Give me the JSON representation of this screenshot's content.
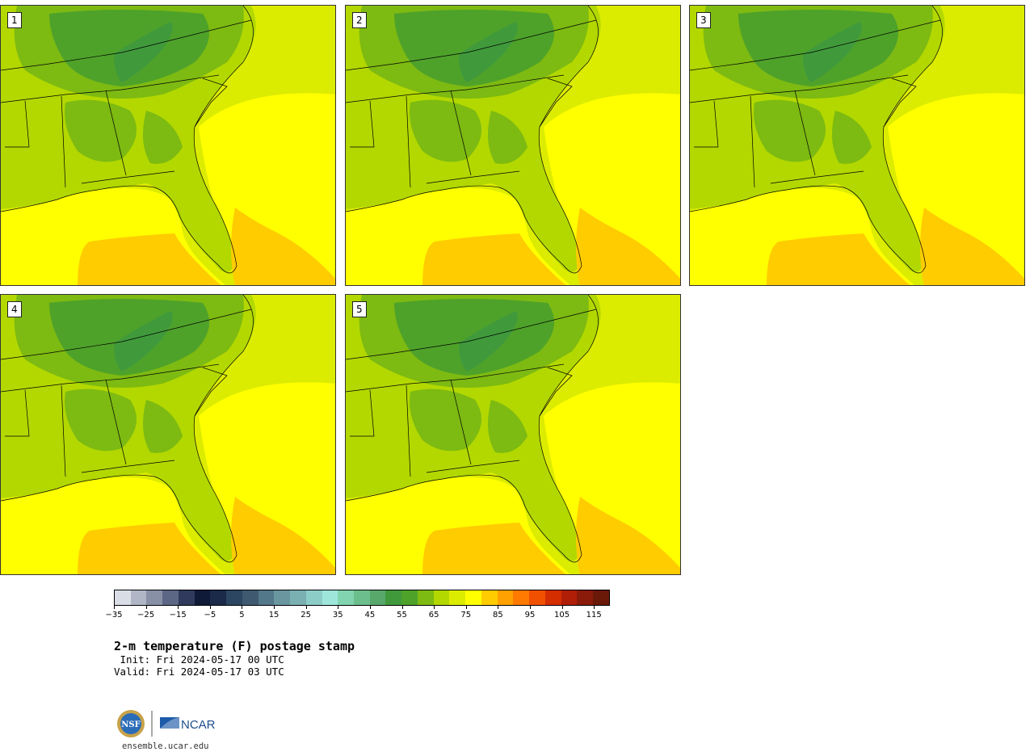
{
  "panels": [
    {
      "label": "1"
    },
    {
      "label": "2"
    },
    {
      "label": "3"
    },
    {
      "label": "4"
    },
    {
      "label": "5"
    }
  ],
  "colorbar": {
    "colors": [
      "#d9dde6",
      "#b0b6c6",
      "#8890a6",
      "#5c6785",
      "#2f3a5c",
      "#0f1a38",
      "#1a2a48",
      "#2c4560",
      "#3f5a70",
      "#52788a",
      "#6a96a0",
      "#7ab0b2",
      "#8ccdc8",
      "#9ee6da",
      "#82d4b0",
      "#6cbe8c",
      "#58a86c",
      "#409a3c",
      "#4ea22a",
      "#7dba12",
      "#b2d800",
      "#dcec00",
      "#ffff00",
      "#ffcc00",
      "#ffa100",
      "#ff7a00",
      "#f05000",
      "#d42d00",
      "#b01e08",
      "#8a1a0a",
      "#6a1808"
    ],
    "ticks": [
      "−35",
      "−25",
      "−15",
      "−5",
      "5",
      "15",
      "25",
      "35",
      "45",
      "55",
      "65",
      "75",
      "85",
      "95",
      "105",
      "115"
    ]
  },
  "title": "2-m temperature (F) postage stamp",
  "init": " Init: Fri 2024-05-17 00 UTC",
  "valid": "Valid: Fri 2024-05-17 03 UTC",
  "logos": {
    "nsf_text": "NSF",
    "ncar_text": "NCAR"
  },
  "site": "ensemble.ucar.edu"
}
